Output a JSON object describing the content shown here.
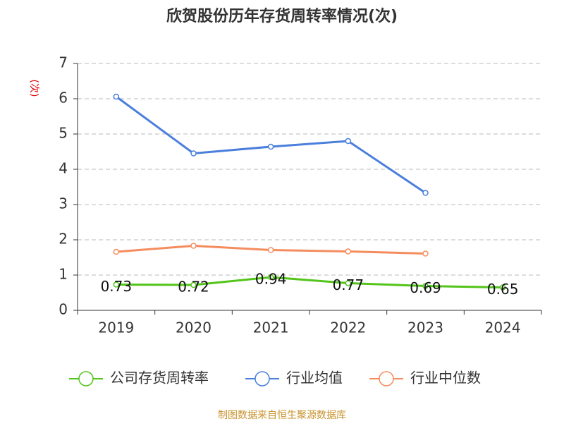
{
  "chart_data": {
    "type": "line",
    "title": "欣贺股份历年存货周转率情况(次)",
    "y_label": "(次)",
    "categories": [
      "2019",
      "2020",
      "2021",
      "2022",
      "2023",
      "2024"
    ],
    "series": [
      {
        "name": "公司存货周转率",
        "color": "#52c41a",
        "values": [
          0.73,
          0.72,
          0.94,
          0.77,
          0.69,
          0.65
        ],
        "show_labels": true
      },
      {
        "name": "行业均值",
        "color": "#4a7fdc",
        "values": [
          6.06,
          4.45,
          4.64,
          4.8,
          3.33,
          null
        ]
      },
      {
        "name": "行业中位数",
        "color": "#f58c5e",
        "values": [
          1.66,
          1.83,
          1.71,
          1.67,
          1.61,
          null
        ]
      }
    ],
    "ylim": [
      0,
      7
    ],
    "yticks": [
      0,
      1,
      2,
      3,
      4,
      5,
      6,
      7
    ],
    "grid": true,
    "source": "制图数据来自恒生聚源数据库"
  }
}
